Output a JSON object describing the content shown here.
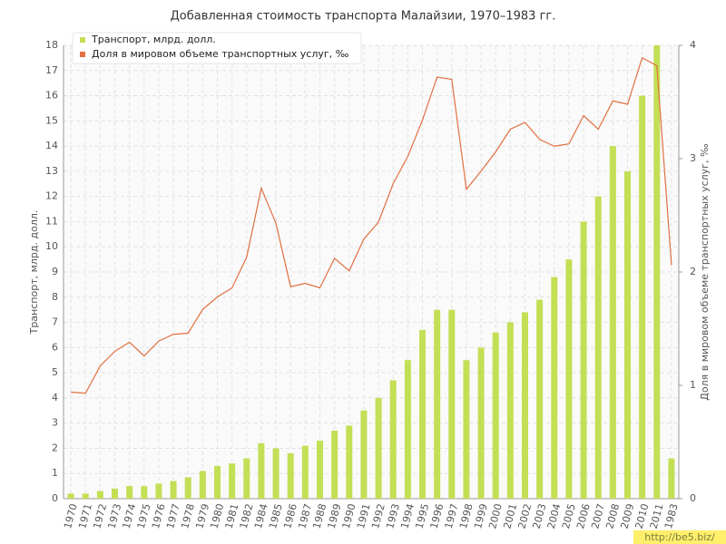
{
  "chart_data": {
    "type": "bar_line",
    "title": "Добавленная стоимость транспорта Малайзии, 1970–1983 гг.",
    "y_label": "Транспорт, млрд. долл.",
    "y2_label": "Доля в мировом объеме транспортных услуг, ‰",
    "watermark": "http://be5.biz/",
    "categories": [
      "1970",
      "1971",
      "1972",
      "1973",
      "1974",
      "1975",
      "1976",
      "1977",
      "1978",
      "1979",
      "1980",
      "1981",
      "1982",
      "1984",
      "1985",
      "1986",
      "1987",
      "1988",
      "1989",
      "1990",
      "1991",
      "1992",
      "1993",
      "1994",
      "1995",
      "1996",
      "1997",
      "1998",
      "1999",
      "2000",
      "2001",
      "2002",
      "2003",
      "2004",
      "2005",
      "2006",
      "2007",
      "2008",
      "2009",
      "2010",
      "2011",
      "1983"
    ],
    "series": [
      {
        "name": "Транспорт, млрд. долл.",
        "color": "#c3df55",
        "axis": "y",
        "values": [
          0.2,
          0.2,
          0.3,
          0.4,
          0.5,
          0.5,
          0.6,
          0.7,
          0.85,
          1.1,
          1.3,
          1.4,
          1.6,
          2.2,
          2.0,
          1.8,
          2.1,
          2.3,
          2.7,
          2.9,
          3.5,
          4.0,
          4.7,
          5.5,
          6.7,
          7.5,
          7.5,
          5.5,
          6.0,
          6.6,
          7.0,
          7.4,
          7.9,
          8.8,
          9.5,
          11.0,
          12.0,
          14.0,
          13.0,
          16.0,
          18.0,
          1.6
        ]
      },
      {
        "name": "Доля в мировом объеме транспортных услуг, ‰",
        "color": "#e07040",
        "axis": "y2",
        "values": [
          0.94,
          0.93,
          1.17,
          1.3,
          1.38,
          1.26,
          1.39,
          1.45,
          1.46,
          1.67,
          1.78,
          1.86,
          2.13,
          2.74,
          2.43,
          1.87,
          1.9,
          1.86,
          2.12,
          2.01,
          2.29,
          2.44,
          2.78,
          3.02,
          3.34,
          3.72,
          3.7,
          2.73,
          2.89,
          3.06,
          3.26,
          3.32,
          3.17,
          3.11,
          3.13,
          3.38,
          3.26,
          3.51,
          3.48,
          3.89,
          3.82,
          2.06
        ]
      }
    ],
    "ylim": [
      0,
      18
    ],
    "yticks": [
      0,
      1,
      2,
      3,
      4,
      5,
      6,
      7,
      8,
      9,
      10,
      11,
      12,
      13,
      14,
      15,
      16,
      17,
      18
    ],
    "y2lim": [
      0,
      4
    ],
    "y2ticks": [
      0,
      1,
      2,
      3,
      4
    ],
    "grid": true,
    "legend": "top-left"
  }
}
